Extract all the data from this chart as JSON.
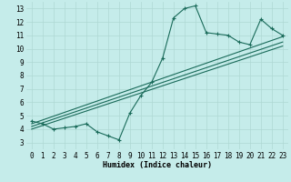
{
  "title": "",
  "xlabel": "Humidex (Indice chaleur)",
  "ylabel": "",
  "bg_color": "#c5ecea",
  "grid_color": "#afd8d4",
  "line_color": "#1a6b5a",
  "xlim": [
    -0.5,
    23.5
  ],
  "ylim": [
    2.5,
    13.5
  ],
  "xticks": [
    0,
    1,
    2,
    3,
    4,
    5,
    6,
    7,
    8,
    9,
    10,
    11,
    12,
    13,
    14,
    15,
    16,
    17,
    18,
    19,
    20,
    21,
    22,
    23
  ],
  "yticks": [
    3,
    4,
    5,
    6,
    7,
    8,
    9,
    10,
    11,
    12,
    13
  ],
  "main_x": [
    0,
    1,
    2,
    3,
    4,
    5,
    6,
    7,
    8,
    9,
    10,
    11,
    12,
    13,
    14,
    15,
    16,
    17,
    18,
    19,
    20,
    21,
    22,
    23
  ],
  "main_y": [
    4.6,
    4.4,
    4.0,
    4.1,
    4.2,
    4.4,
    3.8,
    3.5,
    3.2,
    5.2,
    6.5,
    7.5,
    9.3,
    12.3,
    13.0,
    13.2,
    11.2,
    11.1,
    11.0,
    10.5,
    10.3,
    12.2,
    11.5,
    11.0
  ],
  "reg_lines": [
    {
      "x": [
        0,
        23
      ],
      "y": [
        4.2,
        10.5
      ]
    },
    {
      "x": [
        0,
        23
      ],
      "y": [
        4.4,
        10.9
      ]
    },
    {
      "x": [
        0,
        23
      ],
      "y": [
        4.0,
        10.2
      ]
    }
  ],
  "marker": "+",
  "markersize": 3,
  "markeredgewidth": 0.8,
  "linewidth": 0.8,
  "xlabel_fontsize": 6,
  "tick_fontsize": 5.5
}
